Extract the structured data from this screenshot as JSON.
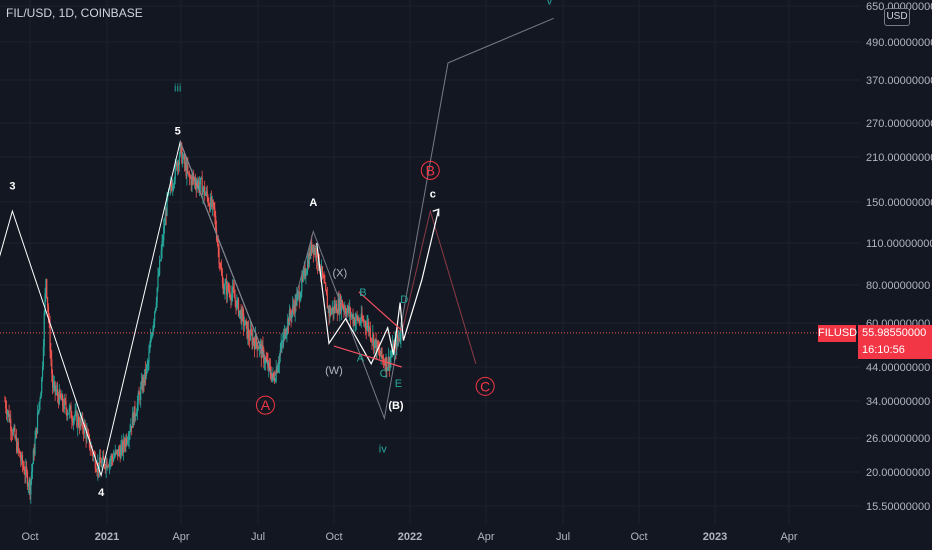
{
  "header": {
    "symbol_title": "FIL/USD, 1D, COINBASE"
  },
  "currency_label": "USD",
  "price_tag": {
    "symbol": "FILUSD",
    "value": "55.98550000",
    "countdown": "16:10:56"
  },
  "colors": {
    "background": "#131722",
    "up": "#26a69a",
    "down": "#ef5350",
    "grid": "#1e222d",
    "axis_text": "#b2b5be",
    "wave_line": "#ffffff",
    "projection": "#787b86",
    "label_red": "#f23645",
    "label_green": "#26a69a"
  },
  "chart_data": {
    "type": "candlestick",
    "y_scale": "log",
    "ylim": [
      14.5,
      650
    ],
    "grid": true,
    "x_tick_labels": [
      "Oct",
      "2021",
      "Apr",
      "Jul",
      "Oct",
      "2022",
      "Apr",
      "Jul",
      "Oct",
      "2023",
      "Apr"
    ],
    "y_tick_labels": [
      "650.00000000",
      "490.00000000",
      "370.00000000",
      "270.00000000",
      "210.00000000",
      "150.00000000",
      "110.00000000",
      "80.00000000",
      "60.00000000",
      "44.00000000",
      "34.00000000",
      "26.00000000",
      "20.00000000",
      "15.50000000"
    ],
    "y_tick_values": [
      650,
      490,
      370,
      270,
      210,
      150,
      110,
      80,
      60,
      44,
      34,
      26,
      20,
      15.5
    ],
    "last_price": 55.9855,
    "price_path": [
      [
        "2020-09-01",
        34
      ],
      [
        "2020-09-20",
        22
      ],
      [
        "2020-10-01",
        18
      ],
      [
        "2020-10-15",
        40
      ],
      [
        "2020-10-20",
        85
      ],
      [
        "2020-10-28",
        38
      ],
      [
        "2020-11-10",
        33
      ],
      [
        "2020-12-05",
        28
      ],
      [
        "2020-12-20",
        21
      ],
      [
        "2021-01-05",
        22
      ],
      [
        "2021-01-20",
        24
      ],
      [
        "2021-02-05",
        32
      ],
      [
        "2021-02-20",
        45
      ],
      [
        "2021-03-01",
        70
      ],
      [
        "2021-03-15",
        150
      ],
      [
        "2021-03-31",
        220
      ],
      [
        "2021-04-10",
        180
      ],
      [
        "2021-04-25",
        170
      ],
      [
        "2021-05-10",
        140
      ],
      [
        "2021-05-20",
        80
      ],
      [
        "2021-06-01",
        75
      ],
      [
        "2021-06-20",
        55
      ],
      [
        "2021-07-01",
        52
      ],
      [
        "2021-07-20",
        40
      ],
      [
        "2021-08-05",
        60
      ],
      [
        "2021-08-20",
        75
      ],
      [
        "2021-09-05",
        110
      ],
      [
        "2021-09-15",
        90
      ],
      [
        "2021-09-25",
        65
      ],
      [
        "2021-10-10",
        70
      ],
      [
        "2021-10-25",
        62
      ],
      [
        "2021-11-10",
        60
      ],
      [
        "2021-11-25",
        48
      ],
      [
        "2021-12-05",
        45
      ],
      [
        "2021-12-15",
        52
      ],
      [
        "2021-12-21",
        56
      ]
    ],
    "wave_count": [
      [
        "2020-06-01",
        15
      ],
      [
        "2020-09-10",
        140
      ],
      [
        "2020-12-25",
        19.5
      ],
      [
        "2021-03-31",
        235
      ],
      [
        "2021-07-20",
        40
      ],
      [
        "2021-09-06",
        120
      ],
      [
        "2021-12-01",
        30
      ],
      [
        "2022-02-15",
        420
      ],
      [
        "2022-06-20",
        590
      ]
    ],
    "projection_path": [
      [
        "2021-12-22",
        56
      ],
      [
        "2022-01-25",
        140
      ],
      [
        "2022-03-20",
        45
      ]
    ],
    "sub_lines": [
      [
        [
          "2021-09-10",
          110
        ],
        [
          "2021-09-25",
          52
        ],
        [
          "2021-10-15",
          62
        ],
        [
          "2021-11-15",
          45
        ],
        [
          "2021-12-05",
          58
        ],
        [
          "2021-12-12",
          48
        ],
        [
          "2021-12-20",
          70
        ],
        [
          "2021-12-24",
          53
        ],
        [
          "2022-01-15",
          83
        ],
        [
          "2022-02-04",
          142
        ]
      ]
    ],
    "triangle_lines": [
      [
        [
          "2021-10-31",
          76
        ],
        [
          "2021-12-22",
          57
        ]
      ],
      [
        [
          "2021-10-01",
          51
        ],
        [
          "2021-12-22",
          44
        ]
      ]
    ],
    "annotations": [
      {
        "text": "3",
        "x": "2020-09-10",
        "y": 170,
        "color": "#ffffff"
      },
      {
        "text": "4",
        "x": "2020-12-25",
        "y": 17.2,
        "color": "#ffffff"
      },
      {
        "text": "5",
        "x": "2021-03-28",
        "y": 255,
        "color": "#ffffff"
      },
      {
        "text": "iii",
        "x": "2021-03-28",
        "y": 350,
        "color": "#26a69a"
      },
      {
        "text": "A",
        "x": "2021-09-06",
        "y": 150,
        "color": "#ffffff"
      },
      {
        "text": "A",
        "x": "2021-07-10",
        "y": 33,
        "color": "#f23645",
        "circle": true
      },
      {
        "text": "(X)",
        "x": "2021-10-08",
        "y": 88,
        "color": "#b2b5be"
      },
      {
        "text": "(W)",
        "x": "2021-10-01",
        "y": 43,
        "color": "#b2b5be"
      },
      {
        "text": "B",
        "x": "2021-11-05",
        "y": 76,
        "color": "#26a69a"
      },
      {
        "text": "A",
        "x": "2021-11-02",
        "y": 47,
        "color": "#26a69a"
      },
      {
        "text": "C",
        "x": "2021-11-30",
        "y": 42,
        "color": "#26a69a"
      },
      {
        "text": "D",
        "x": "2021-12-25",
        "y": 72,
        "color": "#26a69a"
      },
      {
        "text": "E",
        "x": "2021-12-18",
        "y": 39,
        "color": "#26a69a"
      },
      {
        "text": "(B)",
        "x": "2021-12-15",
        "y": 33,
        "color": "#ffffff"
      },
      {
        "text": "iv",
        "x": "2021-11-29",
        "y": 24,
        "color": "#26a69a"
      },
      {
        "text": "B",
        "x": "2022-01-25",
        "y": 190,
        "color": "#f23645",
        "circle": true
      },
      {
        "text": "c",
        "x": "2022-01-28",
        "y": 160,
        "color": "#ffffff"
      },
      {
        "text": "C",
        "x": "2022-03-31",
        "y": 38,
        "color": "#f23645",
        "circle": true
      },
      {
        "text": "v",
        "x": "2022-06-15",
        "y": 680,
        "color": "#26a69a"
      }
    ]
  }
}
